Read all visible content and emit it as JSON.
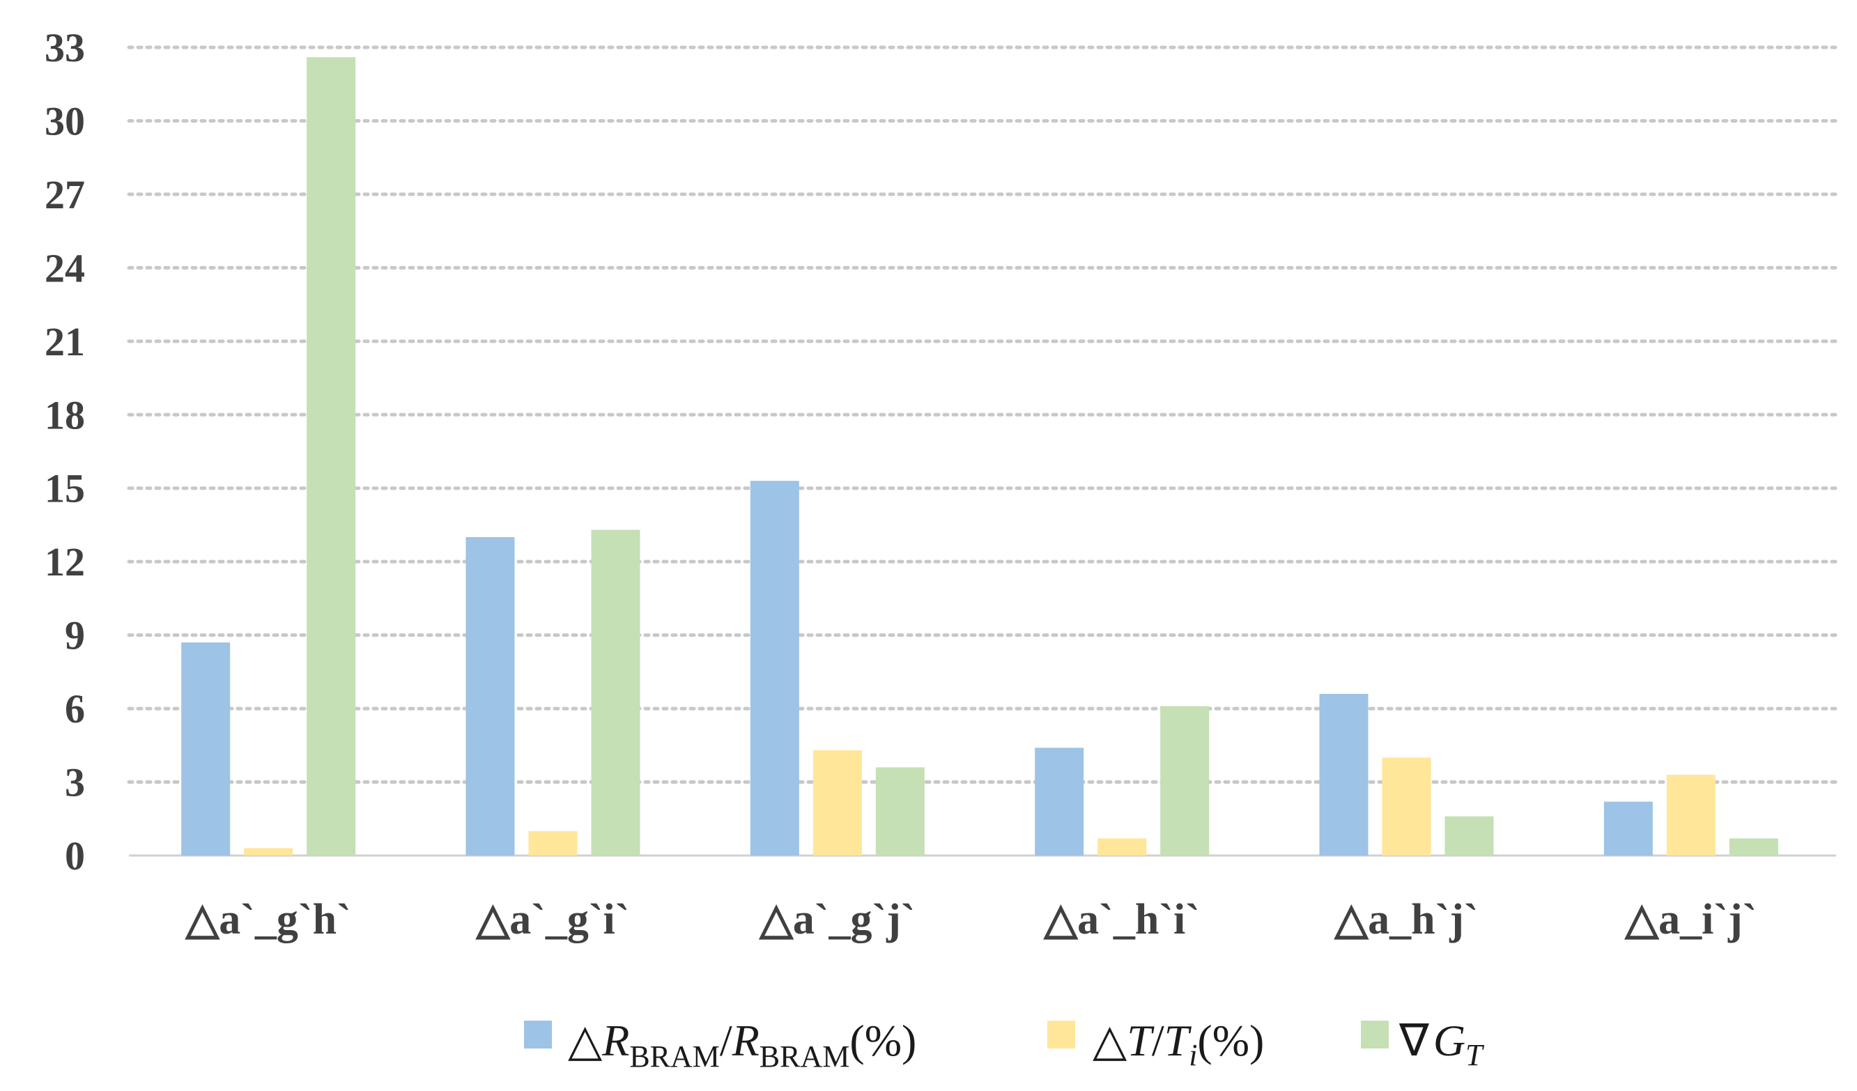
{
  "chart_data": {
    "type": "bar",
    "title": "",
    "xlabel": "",
    "ylabel": "",
    "ylim": [
      0,
      33
    ],
    "yticks": [
      0,
      3,
      6,
      9,
      12,
      15,
      18,
      21,
      24,
      27,
      30,
      33
    ],
    "grid": "horizontal dotted",
    "legend_position": "bottom",
    "categories": [
      "△a`_g`h`",
      "△a`_g`i`",
      "△a`_g`j`",
      "△a`_h`i`",
      "△a_h`j`",
      "△a_i`j`"
    ],
    "series": [
      {
        "name": "△R_BRAM/R_BRAM(%)",
        "legend": {
          "pre": "△",
          "R": "R",
          "sub": "BRAM",
          "slash": "/",
          "R2": "R",
          "sub2": "BRAM",
          "post": "(%)"
        },
        "color": "#9dc3e6",
        "values": [
          8.7,
          13.0,
          15.3,
          4.4,
          6.6,
          2.2
        ]
      },
      {
        "name": "△T/T_i(%)",
        "legend": {
          "pre": "△",
          "T": "T",
          "slash": "/",
          "T2": "T",
          "sub": "i",
          "post": "(%)"
        },
        "color": "#ffe699",
        "values": [
          0.3,
          1.0,
          4.3,
          0.7,
          4.0,
          3.3
        ]
      },
      {
        "name": "∇G_T",
        "legend": {
          "pre": "∇",
          "G": "G",
          "sub": "T"
        },
        "color": "#c5e0b4",
        "values": [
          32.6,
          13.3,
          3.6,
          6.1,
          1.6,
          0.7
        ]
      }
    ]
  }
}
